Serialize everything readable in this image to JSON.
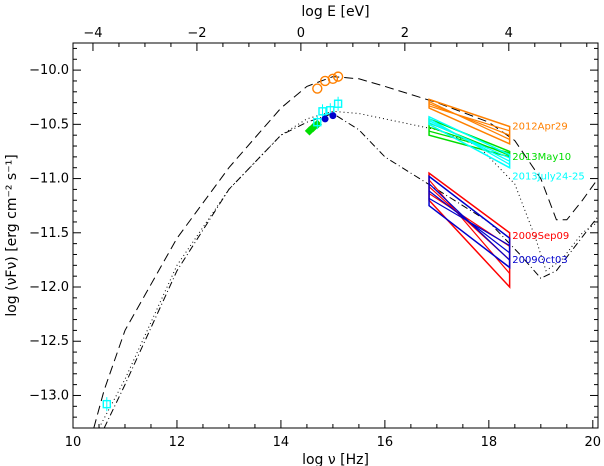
{
  "chart_data": {
    "type": "scatter",
    "title": "",
    "xlabel": "log ν [Hz]",
    "ylabel": "log (νFν) [erg cm⁻² s⁻¹]",
    "x2label": "log E [eV]",
    "xlim": [
      10,
      20.1
    ],
    "ylim": [
      -13.3,
      -9.75
    ],
    "x_ticks": [
      10,
      12,
      14,
      16,
      18,
      20
    ],
    "y_ticks": [
      -10.0,
      -10.5,
      -11.0,
      -11.5,
      -12.0,
      -12.5,
      -13.0
    ],
    "y_tick_labels": [
      "−10.0",
      "−10.5",
      "−11.0",
      "−11.5",
      "−12.0",
      "−12.5",
      "−13.0"
    ],
    "top_ticks": [
      -4,
      -2,
      0,
      2,
      4
    ],
    "top_tick_labels": [
      "−4",
      "−2",
      "0",
      "2",
      "4"
    ],
    "series": [
      {
        "name": "2012Apr29",
        "color": "#ff8000",
        "points": [
          [
            14.7,
            -10.17
          ],
          [
            14.85,
            -10.1
          ],
          [
            15.0,
            -10.08
          ],
          [
            15.1,
            -10.06
          ]
        ],
        "bowtie": {
          "x": [
            16.85,
            18.4
          ],
          "upper": [
            -10.27,
            -10.52
          ],
          "lower": [
            -10.35,
            -10.68
          ]
        }
      },
      {
        "name": "2013May10",
        "color": "#00dd00",
        "points": [
          [
            14.55,
            -10.56
          ],
          [
            14.62,
            -10.53
          ],
          [
            14.7,
            -10.5
          ]
        ],
        "bowtie": {
          "x": [
            16.85,
            18.4
          ],
          "upper": [
            -10.45,
            -10.75
          ],
          "lower": [
            -10.6,
            -10.8
          ]
        }
      },
      {
        "name": "2013July24-25",
        "color": "#00ffff",
        "points": [
          [
            10.65,
            -13.08
          ],
          [
            14.8,
            -10.38
          ],
          [
            14.95,
            -10.37
          ],
          [
            15.1,
            -10.31
          ],
          [
            14.7,
            -10.48
          ]
        ],
        "bowtie": {
          "x": [
            16.85,
            18.4
          ],
          "upper": [
            -10.43,
            -10.78
          ],
          "lower": [
            -10.5,
            -10.9
          ]
        }
      },
      {
        "name": "2009Sep09",
        "color": "#ff0000",
        "points": [],
        "bowtie": {
          "x": [
            16.85,
            18.4
          ],
          "upper": [
            -10.95,
            -11.5
          ],
          "lower": [
            -11.2,
            -12.0
          ]
        }
      },
      {
        "name": "2009Oct03",
        "color": "#0000cc",
        "points": [
          [
            14.85,
            -10.45
          ],
          [
            15.0,
            -10.42
          ]
        ],
        "bowtie": {
          "x": [
            16.85,
            18.4
          ],
          "upper": [
            -10.98,
            -11.55
          ],
          "lower": [
            -11.25,
            -11.82
          ]
        }
      }
    ],
    "model_curves": [
      {
        "style": "dashed",
        "points": [
          [
            10.4,
            -13.3
          ],
          [
            10.6,
            -12.95
          ],
          [
            11,
            -12.4
          ],
          [
            12,
            -11.55
          ],
          [
            13,
            -10.9
          ],
          [
            14,
            -10.35
          ],
          [
            14.5,
            -10.15
          ],
          [
            15,
            -10.06
          ],
          [
            15.5,
            -10.08
          ],
          [
            16,
            -10.15
          ],
          [
            17,
            -10.3
          ],
          [
            18,
            -10.48
          ],
          [
            18.5,
            -10.65
          ],
          [
            19,
            -11.0
          ],
          [
            19.3,
            -11.38
          ],
          [
            19.5,
            -11.38
          ],
          [
            19.8,
            -11.2
          ],
          [
            20.1,
            -11.0
          ]
        ]
      },
      {
        "style": "dotted",
        "points": [
          [
            10.5,
            -13.3
          ],
          [
            11,
            -12.85
          ],
          [
            12,
            -11.8
          ],
          [
            13,
            -11.1
          ],
          [
            14,
            -10.6
          ],
          [
            14.5,
            -10.45
          ],
          [
            15,
            -10.38
          ],
          [
            15.5,
            -10.4
          ],
          [
            16,
            -10.45
          ],
          [
            17,
            -10.55
          ],
          [
            17.8,
            -10.7
          ],
          [
            18.5,
            -11.05
          ],
          [
            18.9,
            -11.55
          ],
          [
            19.1,
            -11.85
          ],
          [
            19.4,
            -11.75
          ],
          [
            19.8,
            -11.5
          ],
          [
            20.1,
            -11.4
          ]
        ]
      },
      {
        "style": "dash-dot",
        "points": [
          [
            10.6,
            -13.3
          ],
          [
            11,
            -12.9
          ],
          [
            12,
            -11.85
          ],
          [
            13,
            -11.1
          ],
          [
            14,
            -10.6
          ],
          [
            14.5,
            -10.48
          ],
          [
            15,
            -10.4
          ],
          [
            15.5,
            -10.55
          ],
          [
            16,
            -10.8
          ],
          [
            17,
            -11.1
          ],
          [
            18,
            -11.4
          ],
          [
            18.6,
            -11.7
          ],
          [
            19,
            -11.92
          ],
          [
            19.3,
            -11.85
          ],
          [
            19.7,
            -11.6
          ],
          [
            20.1,
            -11.35
          ]
        ]
      }
    ],
    "grid": false,
    "legend": "right, as colored text labels beside the bowties"
  }
}
